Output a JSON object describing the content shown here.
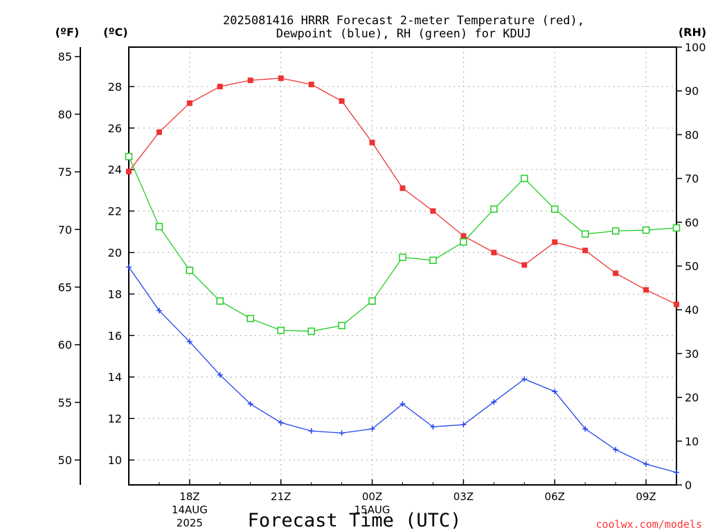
{
  "chart_data": {
    "type": "line",
    "title_line1": "2025081416 HRRR Forecast 2-meter Temperature (red),",
    "title_line2": "Dewpoint (blue), RH (green) for KDUJ",
    "xlabel": "Forecast Time (UTC)",
    "credit": "coolwx.com/models",
    "units": {
      "fahrenheit": "(ºF)",
      "celsius": "(ºC)",
      "rh": "(RH)"
    },
    "x_hours": [
      16,
      17,
      18,
      19,
      20,
      21,
      22,
      23,
      24,
      25,
      26,
      27,
      28,
      29,
      30,
      31,
      32,
      33,
      34
    ],
    "x_range": [
      16,
      34
    ],
    "x_ticks": [
      {
        "hour": 18,
        "label": "18Z",
        "sub1": "14AUG",
        "sub2": "2025"
      },
      {
        "hour": 21,
        "label": "21Z",
        "sub1": "",
        "sub2": ""
      },
      {
        "hour": 24,
        "label": "00Z",
        "sub1": "15AUG",
        "sub2": ""
      },
      {
        "hour": 27,
        "label": "03Z",
        "sub1": "",
        "sub2": ""
      },
      {
        "hour": 30,
        "label": "06Z",
        "sub1": "",
        "sub2": ""
      },
      {
        "hour": 33,
        "label": "09Z",
        "sub1": "",
        "sub2": ""
      }
    ],
    "celsius_range": [
      8.8,
      29.9
    ],
    "celsius_ticks": [
      10,
      12,
      14,
      16,
      18,
      20,
      22,
      24,
      26,
      28
    ],
    "fahrenheit_ticks": [
      50,
      55,
      60,
      65,
      70,
      75,
      80,
      85
    ],
    "rh_range": [
      0,
      100
    ],
    "rh_ticks": [
      0,
      10,
      20,
      30,
      40,
      50,
      60,
      70,
      80,
      90,
      100
    ],
    "grid": true,
    "series": [
      {
        "name": "Temperature (red)",
        "axis": "celsius",
        "color": "#ee3333",
        "marker": "filled-square",
        "values": [
          23.9,
          25.8,
          27.2,
          28.0,
          28.3,
          28.4,
          28.1,
          27.3,
          25.3,
          23.1,
          22.0,
          20.8,
          20.0,
          19.4,
          20.5,
          20.1,
          19.0,
          18.2,
          17.5
        ]
      },
      {
        "name": "Dewpoint (blue)",
        "axis": "celsius",
        "color": "#2244ee",
        "marker": "plus",
        "values": [
          19.3,
          17.2,
          15.7,
          14.1,
          12.7,
          11.8,
          11.4,
          11.3,
          11.5,
          12.7,
          11.6,
          11.7,
          12.8,
          13.9,
          13.3,
          11.5,
          10.5,
          9.8,
          9.4
        ]
      },
      {
        "name": "RH (green)",
        "axis": "rh",
        "color": "#22cc22",
        "marker": "open-square",
        "values": [
          75,
          59,
          49,
          42,
          38,
          35.3,
          35.1,
          36.4,
          42,
          52,
          51.3,
          55.5,
          63,
          70,
          63,
          57.3,
          58,
          58.2,
          58.7
        ]
      }
    ]
  }
}
